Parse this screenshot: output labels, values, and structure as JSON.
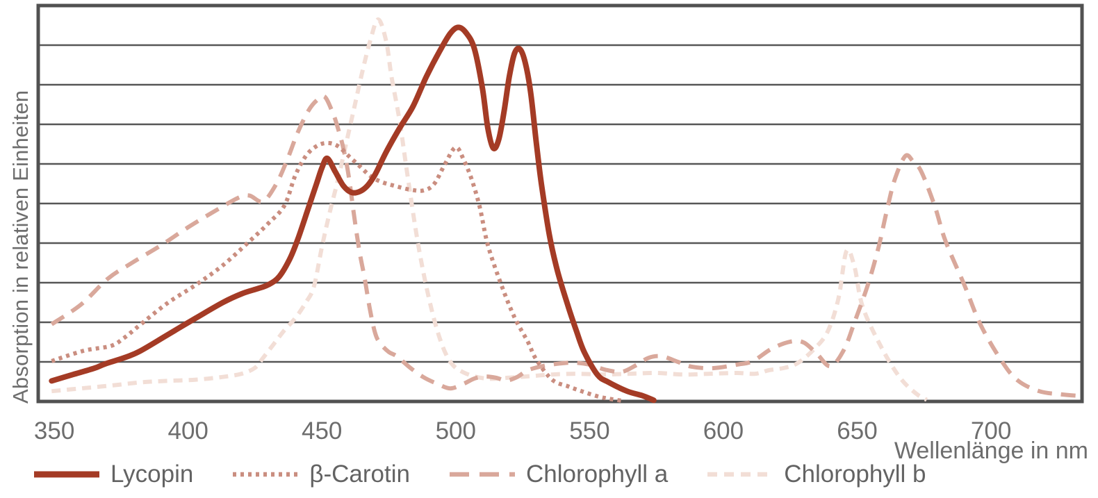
{
  "chart": {
    "y_axis_title": "Absorption in relativen Einheiten",
    "x_axis_title": "Wellenlänge in nm"
  },
  "chart_data": {
    "type": "line",
    "title": "",
    "xlabel": "Wellenlänge in nm",
    "ylabel": "Absorption in relativen Einheiten",
    "x_unit": "nm",
    "x_ticks": [
      350,
      400,
      450,
      500,
      550,
      600,
      650,
      700
    ],
    "x_range": [
      344,
      734
    ],
    "y_range": [
      0,
      10
    ],
    "y_divisions": 10,
    "grid": "horizontal",
    "legend_position": "bottom",
    "grid_color": "#565656",
    "border_color": "#515151",
    "text_color": "#6d6d6d",
    "series": [
      {
        "name": "Lycopin",
        "color": "#a43b25",
        "line_style": "solid",
        "line_width": 8,
        "points": [
          [
            349,
            0.52
          ],
          [
            357,
            0.68
          ],
          [
            365,
            0.84
          ],
          [
            369,
            0.95
          ],
          [
            376,
            1.1
          ],
          [
            382,
            1.27
          ],
          [
            392,
            1.67
          ],
          [
            403,
            2.11
          ],
          [
            413,
            2.5
          ],
          [
            420,
            2.72
          ],
          [
            426,
            2.85
          ],
          [
            430,
            2.95
          ],
          [
            434,
            3.15
          ],
          [
            438,
            3.6
          ],
          [
            441,
            4.1
          ],
          [
            445,
            4.9
          ],
          [
            448,
            5.5
          ],
          [
            450,
            5.9
          ],
          [
            452,
            6.14
          ],
          [
            455,
            5.8
          ],
          [
            458,
            5.45
          ],
          [
            461,
            5.28
          ],
          [
            464,
            5.3
          ],
          [
            467,
            5.45
          ],
          [
            470,
            5.75
          ],
          [
            474,
            6.3
          ],
          [
            479,
            6.9
          ],
          [
            484,
            7.45
          ],
          [
            489,
            8.2
          ],
          [
            494,
            8.85
          ],
          [
            498,
            9.3
          ],
          [
            501,
            9.45
          ],
          [
            504,
            9.3
          ],
          [
            507,
            8.9
          ],
          [
            510,
            7.9
          ],
          [
            512,
            6.9
          ],
          [
            514,
            6.4
          ],
          [
            516,
            6.6
          ],
          [
            518,
            7.3
          ],
          [
            520,
            8.2
          ],
          [
            522,
            8.8
          ],
          [
            524,
            8.9
          ],
          [
            526,
            8.55
          ],
          [
            528,
            7.8
          ],
          [
            530,
            6.6
          ],
          [
            532,
            5.5
          ],
          [
            535,
            4.2
          ],
          [
            538,
            3.3
          ],
          [
            542,
            2.4
          ],
          [
            545,
            1.8
          ],
          [
            548,
            1.25
          ],
          [
            553,
            0.67
          ],
          [
            557,
            0.49
          ],
          [
            564,
            0.26
          ],
          [
            570,
            0.14
          ],
          [
            574,
            0.03
          ]
        ]
      },
      {
        "name": "β-Carotin",
        "color": "#ca8e80",
        "line_style": "dotted",
        "line_width": 6,
        "points": [
          [
            349,
            1.02
          ],
          [
            361,
            1.28
          ],
          [
            371,
            1.4
          ],
          [
            376,
            1.6
          ],
          [
            382,
            1.93
          ],
          [
            392,
            2.47
          ],
          [
            403,
            2.95
          ],
          [
            413,
            3.44
          ],
          [
            423,
            4.05
          ],
          [
            430,
            4.5
          ],
          [
            436,
            4.95
          ],
          [
            440,
            5.7
          ],
          [
            444,
            6.2
          ],
          [
            448,
            6.45
          ],
          [
            452,
            6.53
          ],
          [
            456,
            6.45
          ],
          [
            460,
            6.2
          ],
          [
            464,
            5.95
          ],
          [
            468,
            5.7
          ],
          [
            472,
            5.55
          ],
          [
            477,
            5.45
          ],
          [
            483,
            5.35
          ],
          [
            488,
            5.33
          ],
          [
            492,
            5.5
          ],
          [
            496,
            6.0
          ],
          [
            500,
            6.42
          ],
          [
            503,
            6.1
          ],
          [
            506,
            5.6
          ],
          [
            509,
            4.9
          ],
          [
            512,
            3.95
          ],
          [
            517,
            2.95
          ],
          [
            522,
            2.12
          ],
          [
            527,
            1.5
          ],
          [
            530,
            1.07
          ],
          [
            536,
            0.55
          ],
          [
            542,
            0.38
          ],
          [
            547,
            0.26
          ],
          [
            553,
            0.13
          ],
          [
            558,
            0.06
          ],
          [
            563,
            0.01
          ]
        ]
      },
      {
        "name": "Chlorophyll a",
        "color": "#d9a89b",
        "line_style": "long-dash",
        "line_width": 6,
        "points": [
          [
            349,
            1.95
          ],
          [
            360,
            2.45
          ],
          [
            370,
            3.1
          ],
          [
            379,
            3.5
          ],
          [
            390,
            3.95
          ],
          [
            400,
            4.4
          ],
          [
            411,
            4.85
          ],
          [
            419,
            5.15
          ],
          [
            423,
            5.2
          ],
          [
            428,
            5.05
          ],
          [
            433,
            5.5
          ],
          [
            437,
            6.1
          ],
          [
            441,
            6.8
          ],
          [
            445,
            7.35
          ],
          [
            448,
            7.6
          ],
          [
            451,
            7.7
          ],
          [
            454,
            7.3
          ],
          [
            456,
            6.9
          ],
          [
            458,
            6.4
          ],
          [
            460,
            5.7
          ],
          [
            462,
            4.7
          ],
          [
            464,
            3.8
          ],
          [
            466,
            3.1
          ],
          [
            468,
            2.3
          ],
          [
            470,
            1.7
          ],
          [
            472,
            1.45
          ],
          [
            475,
            1.25
          ],
          [
            478,
            1.14
          ],
          [
            483,
            0.85
          ],
          [
            488,
            0.61
          ],
          [
            493,
            0.45
          ],
          [
            498,
            0.33
          ],
          [
            503,
            0.45
          ],
          [
            507,
            0.58
          ],
          [
            511,
            0.63
          ],
          [
            515,
            0.6
          ],
          [
            519,
            0.53
          ],
          [
            523,
            0.62
          ],
          [
            527,
            0.79
          ],
          [
            533,
            0.9
          ],
          [
            539,
            0.96
          ],
          [
            544,
            0.98
          ],
          [
            550,
            0.93
          ],
          [
            556,
            0.8
          ],
          [
            562,
            0.75
          ],
          [
            567,
            0.9
          ],
          [
            572,
            1.1
          ],
          [
            577,
            1.14
          ],
          [
            583,
            1.0
          ],
          [
            588,
            0.88
          ],
          [
            596,
            0.84
          ],
          [
            605,
            0.93
          ],
          [
            611,
            1.02
          ],
          [
            618,
            1.33
          ],
          [
            625,
            1.51
          ],
          [
            630,
            1.49
          ],
          [
            635,
            1.2
          ],
          [
            640,
            0.89
          ],
          [
            645,
            1.3
          ],
          [
            649,
            2.0
          ],
          [
            654,
            2.95
          ],
          [
            658,
            3.9
          ],
          [
            661,
            4.8
          ],
          [
            664,
            5.6
          ],
          [
            668,
            6.2
          ],
          [
            671,
            6.05
          ],
          [
            674,
            5.8
          ],
          [
            679,
            4.93
          ],
          [
            683,
            4.05
          ],
          [
            690,
            2.95
          ],
          [
            696,
            1.95
          ],
          [
            704,
            1.02
          ],
          [
            710,
            0.53
          ],
          [
            718,
            0.26
          ],
          [
            726,
            0.18
          ],
          [
            733,
            0.14
          ]
        ]
      },
      {
        "name": "Chlorophyll b",
        "color": "#f2ded6",
        "line_style": "short-dash",
        "line_width": 6,
        "points": [
          [
            349,
            0.26
          ],
          [
            360,
            0.33
          ],
          [
            371,
            0.4
          ],
          [
            382,
            0.48
          ],
          [
            392,
            0.52
          ],
          [
            403,
            0.55
          ],
          [
            413,
            0.62
          ],
          [
            420,
            0.7
          ],
          [
            425,
            0.85
          ],
          [
            428,
            1.1
          ],
          [
            432,
            1.45
          ],
          [
            436,
            1.8
          ],
          [
            440,
            2.1
          ],
          [
            444,
            2.5
          ],
          [
            447,
            2.9
          ],
          [
            450,
            3.9
          ],
          [
            453,
            4.8
          ],
          [
            456,
            5.6
          ],
          [
            459,
            6.5
          ],
          [
            462,
            7.4
          ],
          [
            465,
            8.3
          ],
          [
            468,
            9.1
          ],
          [
            471,
            9.65
          ],
          [
            474,
            9.1
          ],
          [
            476,
            8.2
          ],
          [
            479,
            7.1
          ],
          [
            482,
            5.7
          ],
          [
            486,
            3.95
          ],
          [
            490,
            2.6
          ],
          [
            494,
            1.6
          ],
          [
            498,
            1.0
          ],
          [
            503,
            0.73
          ],
          [
            511,
            0.58
          ],
          [
            520,
            0.6
          ],
          [
            528,
            0.64
          ],
          [
            536,
            0.68
          ],
          [
            545,
            0.7
          ],
          [
            555,
            0.68
          ],
          [
            565,
            0.7
          ],
          [
            575,
            0.72
          ],
          [
            585,
            0.68
          ],
          [
            595,
            0.7
          ],
          [
            605,
            0.72
          ],
          [
            612,
            0.7
          ],
          [
            617,
            0.79
          ],
          [
            623,
            0.85
          ],
          [
            628,
            0.98
          ],
          [
            634,
            1.33
          ],
          [
            639,
            1.77
          ],
          [
            643,
            2.6
          ],
          [
            646,
            3.8
          ],
          [
            649,
            3.4
          ],
          [
            652,
            2.4
          ],
          [
            659,
            1.37
          ],
          [
            666,
            0.6
          ],
          [
            672,
            0.2
          ],
          [
            676,
            0.04
          ]
        ]
      }
    ]
  }
}
